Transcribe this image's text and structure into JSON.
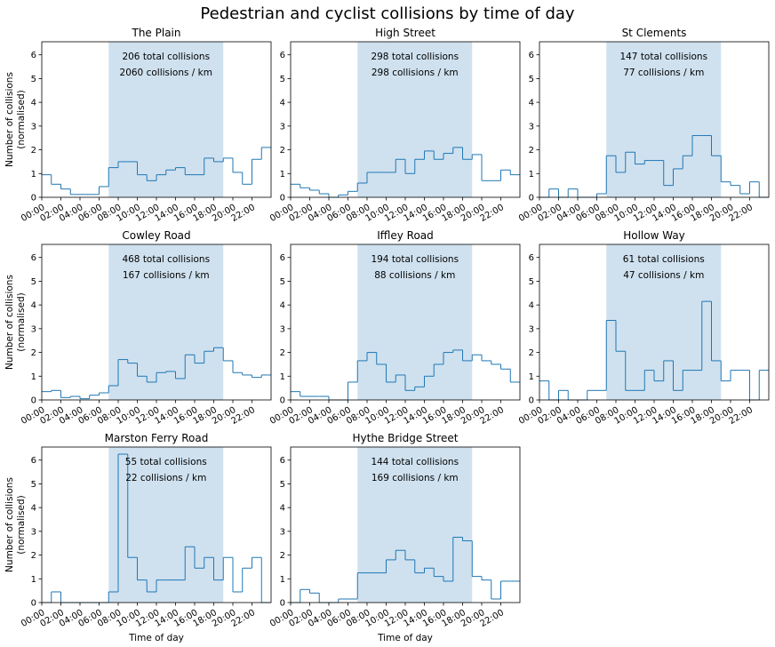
{
  "figure_title": "Pedestrian and cyclist collisions by time of day",
  "colors": {
    "line": "#1f77b4",
    "shade": "#cfe1ef",
    "axis": "#000000"
  },
  "chart_data": [
    {
      "type": "step",
      "title": "The Plain",
      "annotation_total": "206 total collisions",
      "annotation_rate": "2060 collisions / km",
      "xlabel": "",
      "ylabel": "Number of collisions\n(normalised)",
      "x_tick_labels": [
        "00:00",
        "02:00",
        "04:00",
        "06:00",
        "08:00",
        "10:00",
        "12:00",
        "14:00",
        "16:00",
        "18:00",
        "20:00",
        "22:00"
      ],
      "y_ticks": [
        0,
        1,
        2,
        3,
        4,
        5,
        6
      ],
      "xlim": [
        0,
        24
      ],
      "ylim": [
        0,
        6.55
      ],
      "shaded_hours": [
        7,
        19
      ],
      "hours": [
        0,
        1,
        2,
        3,
        4,
        5,
        6,
        7,
        8,
        9,
        10,
        11,
        12,
        13,
        14,
        15,
        16,
        17,
        18,
        19,
        20,
        21,
        22,
        23
      ],
      "values": [
        0.95,
        0.55,
        0.35,
        0.12,
        0.12,
        0.12,
        0.45,
        1.25,
        1.5,
        1.5,
        0.95,
        0.7,
        0.95,
        1.15,
        1.25,
        0.95,
        0.95,
        1.65,
        1.5,
        1.65,
        1.05,
        0.55,
        1.6,
        2.1
      ]
    },
    {
      "type": "step",
      "title": "High Street",
      "annotation_total": "298 total collisions",
      "annotation_rate": "298 collisions / km",
      "xlabel": "",
      "ylabel": "",
      "x_tick_labels": [
        "00:00",
        "02:00",
        "04:00",
        "06:00",
        "08:00",
        "10:00",
        "12:00",
        "14:00",
        "16:00",
        "18:00",
        "20:00",
        "22:00"
      ],
      "y_ticks": [
        0,
        1,
        2,
        3,
        4,
        5,
        6
      ],
      "xlim": [
        0,
        24
      ],
      "ylim": [
        0,
        6.55
      ],
      "shaded_hours": [
        7,
        19
      ],
      "hours": [
        0,
        1,
        2,
        3,
        4,
        5,
        6,
        7,
        8,
        9,
        10,
        11,
        12,
        13,
        14,
        15,
        16,
        17,
        18,
        19,
        20,
        21,
        22,
        23
      ],
      "values": [
        0.55,
        0.4,
        0.3,
        0.15,
        0.0,
        0.1,
        0.25,
        0.6,
        1.05,
        1.05,
        1.05,
        1.6,
        1.0,
        1.6,
        1.95,
        1.6,
        1.85,
        2.1,
        1.6,
        1.8,
        0.7,
        0.7,
        1.15,
        0.95
      ]
    },
    {
      "type": "step",
      "title": "St Clements",
      "annotation_total": "147 total collisions",
      "annotation_rate": "77 collisions / km",
      "xlabel": "",
      "ylabel": "",
      "x_tick_labels": [
        "00:00",
        "02:00",
        "04:00",
        "06:00",
        "08:00",
        "10:00",
        "12:00",
        "14:00",
        "16:00",
        "18:00",
        "20:00",
        "22:00"
      ],
      "y_ticks": [
        0,
        1,
        2,
        3,
        4,
        5,
        6
      ],
      "xlim": [
        0,
        24
      ],
      "ylim": [
        0,
        6.55
      ],
      "shaded_hours": [
        7,
        19
      ],
      "hours": [
        0,
        1,
        2,
        3,
        4,
        5,
        6,
        7,
        8,
        9,
        10,
        11,
        12,
        13,
        14,
        15,
        16,
        17,
        18,
        19,
        20,
        21,
        22,
        23
      ],
      "values": [
        0.0,
        0.35,
        0.0,
        0.35,
        0.0,
        0.0,
        0.15,
        1.75,
        1.05,
        1.9,
        1.4,
        1.55,
        1.55,
        0.5,
        1.2,
        1.75,
        2.6,
        2.6,
        1.75,
        0.65,
        0.5,
        0.15,
        0.65,
        0.0
      ]
    },
    {
      "type": "step",
      "title": "Cowley Road",
      "annotation_total": "468 total collisions",
      "annotation_rate": "167 collisions / km",
      "xlabel": "",
      "ylabel": "Number of collisions\n(normalised)",
      "x_tick_labels": [
        "00:00",
        "02:00",
        "04:00",
        "06:00",
        "08:00",
        "10:00",
        "12:00",
        "14:00",
        "16:00",
        "18:00",
        "20:00",
        "22:00"
      ],
      "y_ticks": [
        0,
        1,
        2,
        3,
        4,
        5,
        6
      ],
      "xlim": [
        0,
        24
      ],
      "ylim": [
        0,
        6.55
      ],
      "shaded_hours": [
        7,
        19
      ],
      "hours": [
        0,
        1,
        2,
        3,
        4,
        5,
        6,
        7,
        8,
        9,
        10,
        11,
        12,
        13,
        14,
        15,
        16,
        17,
        18,
        19,
        20,
        21,
        22,
        23
      ],
      "values": [
        0.35,
        0.4,
        0.1,
        0.15,
        0.05,
        0.2,
        0.3,
        0.6,
        1.7,
        1.55,
        1.0,
        0.75,
        1.15,
        1.2,
        0.9,
        1.9,
        1.55,
        2.05,
        2.2,
        1.65,
        1.15,
        1.05,
        0.95,
        1.05
      ]
    },
    {
      "type": "step",
      "title": "Iffley Road",
      "annotation_total": "194 total collisions",
      "annotation_rate": "88 collisions / km",
      "xlabel": "",
      "ylabel": "",
      "x_tick_labels": [
        "00:00",
        "02:00",
        "04:00",
        "06:00",
        "08:00",
        "10:00",
        "12:00",
        "14:00",
        "16:00",
        "18:00",
        "20:00",
        "22:00"
      ],
      "y_ticks": [
        0,
        1,
        2,
        3,
        4,
        5,
        6
      ],
      "xlim": [
        0,
        24
      ],
      "ylim": [
        0,
        6.55
      ],
      "shaded_hours": [
        7,
        19
      ],
      "hours": [
        0,
        1,
        2,
        3,
        4,
        5,
        6,
        7,
        8,
        9,
        10,
        11,
        12,
        13,
        14,
        15,
        16,
        17,
        18,
        19,
        20,
        21,
        22,
        23
      ],
      "values": [
        0.35,
        0.15,
        0.15,
        0.15,
        0.0,
        0.0,
        0.75,
        1.65,
        2.0,
        1.5,
        0.75,
        1.05,
        0.4,
        0.55,
        1.0,
        1.5,
        2.0,
        2.1,
        1.65,
        1.9,
        1.65,
        1.5,
        1.3,
        0.75
      ]
    },
    {
      "type": "step",
      "title": "Hollow Way",
      "annotation_total": "61 total collisions",
      "annotation_rate": "47 collisions / km",
      "xlabel": "",
      "ylabel": "",
      "x_tick_labels": [
        "00:00",
        "02:00",
        "04:00",
        "06:00",
        "08:00",
        "10:00",
        "12:00",
        "14:00",
        "16:00",
        "18:00",
        "20:00",
        "22:00"
      ],
      "y_ticks": [
        0,
        1,
        2,
        3,
        4,
        5,
        6
      ],
      "xlim": [
        0,
        24
      ],
      "ylim": [
        0,
        6.55
      ],
      "shaded_hours": [
        7,
        19
      ],
      "hours": [
        0,
        1,
        2,
        3,
        4,
        5,
        6,
        7,
        8,
        9,
        10,
        11,
        12,
        13,
        14,
        15,
        16,
        17,
        18,
        19,
        20,
        21,
        22,
        23
      ],
      "values": [
        0.8,
        0.0,
        0.4,
        0.0,
        0.0,
        0.4,
        0.4,
        3.35,
        2.05,
        0.4,
        0.4,
        1.25,
        0.8,
        1.65,
        0.4,
        1.25,
        1.25,
        4.15,
        1.65,
        0.8,
        1.25,
        1.25,
        0.0,
        1.25
      ]
    },
    {
      "type": "step",
      "title": "Marston Ferry Road",
      "annotation_total": "55 total collisions",
      "annotation_rate": "22 collisions / km",
      "xlabel": "Time of day",
      "ylabel": "Number of collisions\n(normalised)",
      "x_tick_labels": [
        "00:00",
        "02:00",
        "04:00",
        "06:00",
        "08:00",
        "10:00",
        "12:00",
        "14:00",
        "16:00",
        "18:00",
        "20:00",
        "22:00"
      ],
      "y_ticks": [
        0,
        1,
        2,
        3,
        4,
        5,
        6
      ],
      "xlim": [
        0,
        24
      ],
      "ylim": [
        0,
        6.55
      ],
      "shaded_hours": [
        7,
        19
      ],
      "hours": [
        0,
        1,
        2,
        3,
        4,
        5,
        6,
        7,
        8,
        9,
        10,
        11,
        12,
        13,
        14,
        15,
        16,
        17,
        18,
        19,
        20,
        21,
        22,
        23
      ],
      "values": [
        0.0,
        0.45,
        0.0,
        0.0,
        0.0,
        0.0,
        0.0,
        0.45,
        6.25,
        1.9,
        0.95,
        0.45,
        0.95,
        0.95,
        0.95,
        2.35,
        1.45,
        1.9,
        0.95,
        1.9,
        0.45,
        1.45,
        1.9,
        0.0
      ]
    },
    {
      "type": "step",
      "title": "Hythe Bridge Street",
      "annotation_total": "144 total collisions",
      "annotation_rate": "169 collisions / km",
      "xlabel": "Time of day",
      "ylabel": "",
      "x_tick_labels": [
        "00:00",
        "02:00",
        "04:00",
        "06:00",
        "08:00",
        "10:00",
        "12:00",
        "14:00",
        "16:00",
        "18:00",
        "20:00",
        "22:00"
      ],
      "y_ticks": [
        0,
        1,
        2,
        3,
        4,
        5,
        6
      ],
      "xlim": [
        0,
        24
      ],
      "ylim": [
        0,
        6.55
      ],
      "shaded_hours": [
        7,
        19
      ],
      "hours": [
        0,
        1,
        2,
        3,
        4,
        5,
        6,
        7,
        8,
        9,
        10,
        11,
        12,
        13,
        14,
        15,
        16,
        17,
        18,
        19,
        20,
        21,
        22,
        23
      ],
      "values": [
        0.0,
        0.55,
        0.4,
        0.0,
        0.0,
        0.15,
        0.15,
        1.25,
        1.25,
        1.25,
        1.8,
        2.2,
        1.8,
        1.25,
        1.45,
        1.1,
        0.9,
        2.75,
        2.6,
        1.1,
        0.95,
        0.15,
        0.9,
        0.9
      ]
    }
  ]
}
